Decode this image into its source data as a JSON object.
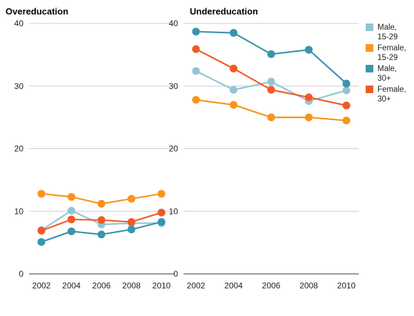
{
  "chart_data": [
    {
      "type": "line",
      "title": "Overeducation",
      "x": [
        "2002",
        "2004",
        "2006",
        "2008",
        "2010"
      ],
      "ylim": [
        0,
        40
      ],
      "yticks": [
        "0",
        "10",
        "20",
        "30",
        "40"
      ],
      "series": [
        {
          "name": "Male, 15-29",
          "values": [
            7.0,
            10.1,
            7.9,
            8.1,
            8.1
          ]
        },
        {
          "name": "Female, 15-29",
          "values": [
            12.8,
            12.3,
            11.2,
            12.0,
            12.8
          ]
        },
        {
          "name": "Male, 30+",
          "values": [
            5.1,
            6.8,
            6.3,
            7.1,
            8.3
          ]
        },
        {
          "name": "Female, 30+",
          "values": [
            6.9,
            8.7,
            8.6,
            8.3,
            9.8
          ]
        }
      ]
    },
    {
      "type": "line",
      "title": "Undereducation",
      "x": [
        "2002",
        "2004",
        "2006",
        "2008",
        "2010"
      ],
      "ylim": [
        0,
        40
      ],
      "yticks": [
        "0",
        "10",
        "20",
        "30",
        "40"
      ],
      "series": [
        {
          "name": "Male, 15-29",
          "values": [
            32.4,
            29.4,
            30.7,
            27.6,
            29.3
          ]
        },
        {
          "name": "Female, 15-29",
          "values": [
            27.8,
            27.0,
            25.0,
            25.0,
            24.5
          ]
        },
        {
          "name": "Male, 30+",
          "values": [
            38.7,
            38.5,
            35.1,
            35.8,
            30.4
          ]
        },
        {
          "name": "Female, 30+",
          "values": [
            35.9,
            32.8,
            29.4,
            28.2,
            26.9
          ]
        }
      ]
    }
  ],
  "legend": [
    {
      "line1": "Male,",
      "line2": "15-29",
      "color": "#92c5d4"
    },
    {
      "line1": "Female,",
      "line2": "15-29",
      "color": "#f7941d"
    },
    {
      "line1": "Male,",
      "line2": "30+",
      "color": "#3a94ad"
    },
    {
      "line1": "Female,",
      "line2": "30+",
      "color": "#f15a24"
    }
  ]
}
